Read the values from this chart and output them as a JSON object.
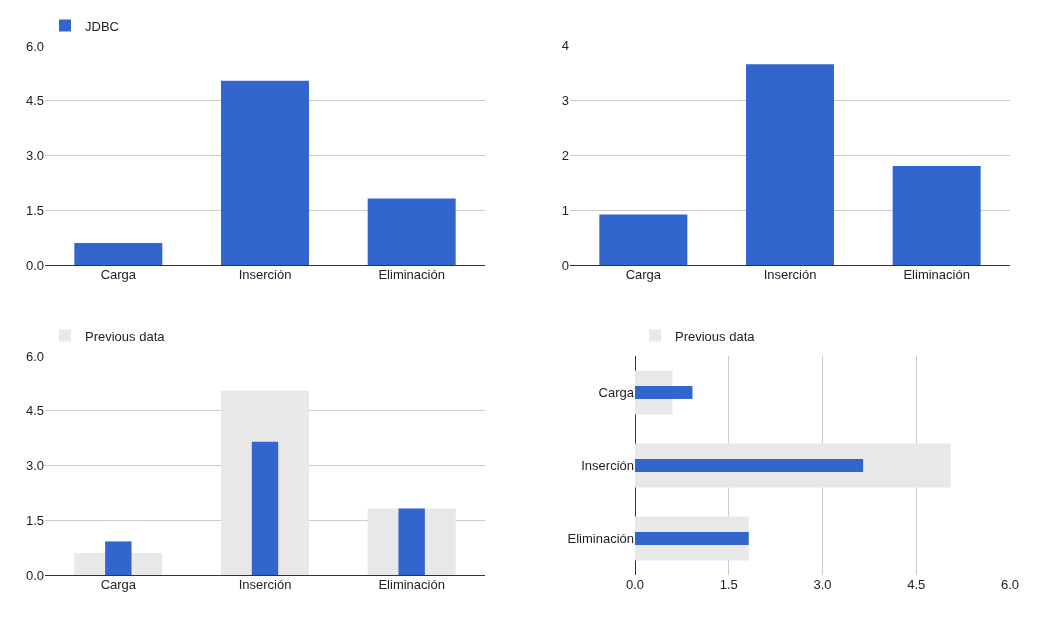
{
  "chart_data": [
    {
      "type": "bar",
      "categories": [
        "Carga",
        "Inserción",
        "Eliminación"
      ],
      "series": [
        {
          "name": "JDBC",
          "color": "#3366cc",
          "values": [
            0.6,
            5.05,
            1.82
          ]
        }
      ],
      "ylim": [
        0,
        6
      ],
      "yticks": [
        {
          "value": 0,
          "label": "0.0"
        },
        {
          "value": 1.5,
          "label": "1.5"
        },
        {
          "value": 3,
          "label": "3.0"
        },
        {
          "value": 4.5,
          "label": "4.5"
        },
        {
          "value": 6,
          "label": "6.0"
        }
      ],
      "grid": "y",
      "legend": "top left"
    },
    {
      "type": "bar",
      "categories": [
        "Carga",
        "Inserción",
        "Eliminación"
      ],
      "series": [
        {
          "color": "#3366cc",
          "values": [
            0.92,
            3.65,
            1.8
          ]
        }
      ],
      "ylim": [
        0,
        4
      ],
      "yticks": [
        0,
        1,
        2,
        3,
        4
      ],
      "grid": "y"
    },
    {
      "type": "bar",
      "categories": [
        "Carga",
        "Inserción",
        "Eliminación"
      ],
      "series": [
        {
          "name": "Previous data",
          "color": "#e8e8e8",
          "values": [
            0.6,
            5.05,
            1.82
          ]
        },
        {
          "color": "#3366cc",
          "values": [
            0.92,
            3.65,
            1.82
          ]
        }
      ],
      "ylim": [
        0,
        6
      ],
      "yticks": [
        {
          "value": 0,
          "label": "0.0"
        },
        {
          "value": 1.5,
          "label": "1.5"
        },
        {
          "value": 3,
          "label": "3.0"
        },
        {
          "value": 4.5,
          "label": "4.5"
        },
        {
          "value": 6,
          "label": "6.0"
        }
      ],
      "grid": "y",
      "legend": "top left"
    },
    {
      "type": "bar",
      "orientation": "horizontal",
      "categories": [
        "Carga",
        "Inserción",
        "Eliminación"
      ],
      "series": [
        {
          "name": "Previous data",
          "color": "#e8e8e8",
          "values": [
            0.6,
            5.05,
            1.82
          ]
        },
        {
          "color": "#3366cc",
          "values": [
            0.92,
            3.65,
            1.82
          ]
        }
      ],
      "xlim": [
        0,
        6
      ],
      "xticks": [
        {
          "value": 0,
          "label": "0.0"
        },
        {
          "value": 1.5,
          "label": "1.5"
        },
        {
          "value": 3,
          "label": "3.0"
        },
        {
          "value": 4.5,
          "label": "4.5"
        },
        {
          "value": 6,
          "label": "6.0"
        }
      ],
      "grid": "x",
      "legend": "top left"
    }
  ]
}
